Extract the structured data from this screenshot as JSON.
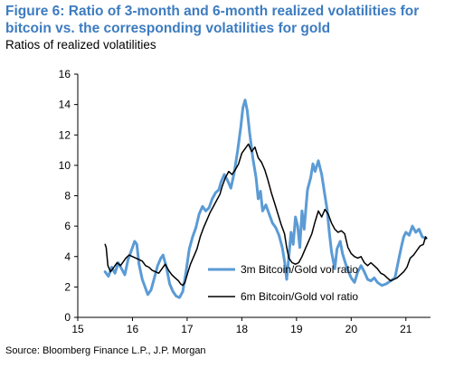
{
  "figure": {
    "title": "Figure 6: Ratio of 3-month and 6-month realized volatilities for bitcoin vs. the corresponding volatilities for gold",
    "subtitle": "Ratios of realized volatilities",
    "source": "Source: Bloomberg Finance L.P., J.P. Morgan"
  },
  "chart_data": {
    "type": "line",
    "title": "Figure 6: Ratio of 3-month and 6-month realized volatilities for bitcoin vs. the corresponding volatilities for gold",
    "subtitle": "Ratios of realized volatilities",
    "xlabel": "",
    "ylabel": "",
    "xlim": [
      15,
      21.45
    ],
    "ylim": [
      0,
      16
    ],
    "xticks": [
      "15",
      "16",
      "17",
      "18",
      "19",
      "20",
      "21"
    ],
    "yticks": [
      "0",
      "2",
      "4",
      "6",
      "8",
      "10",
      "12",
      "14",
      "16"
    ],
    "grid": false,
    "legend": "inside-lower-right",
    "series": [
      {
        "name": "3m Bitcoin/Gold vol ratio",
        "color": "#5b9bd5",
        "points": [
          [
            15.5,
            3.0
          ],
          [
            15.56,
            2.7
          ],
          [
            15.62,
            3.3
          ],
          [
            15.68,
            2.9
          ],
          [
            15.74,
            3.6
          ],
          [
            15.8,
            3.2
          ],
          [
            15.86,
            2.8
          ],
          [
            15.92,
            3.8
          ],
          [
            15.98,
            4.4
          ],
          [
            16.04,
            5.0
          ],
          [
            16.08,
            4.8
          ],
          [
            16.12,
            3.5
          ],
          [
            16.18,
            2.5
          ],
          [
            16.24,
            1.9
          ],
          [
            16.28,
            1.5
          ],
          [
            16.34,
            1.8
          ],
          [
            16.4,
            2.6
          ],
          [
            16.46,
            3.4
          ],
          [
            16.52,
            3.9
          ],
          [
            16.56,
            4.1
          ],
          [
            16.62,
            3.3
          ],
          [
            16.68,
            2.2
          ],
          [
            16.74,
            1.7
          ],
          [
            16.8,
            1.4
          ],
          [
            16.86,
            1.3
          ],
          [
            16.92,
            1.7
          ],
          [
            16.98,
            3.0
          ],
          [
            17.04,
            4.5
          ],
          [
            17.1,
            5.3
          ],
          [
            17.16,
            5.9
          ],
          [
            17.22,
            6.8
          ],
          [
            17.28,
            7.3
          ],
          [
            17.34,
            7.0
          ],
          [
            17.4,
            7.2
          ],
          [
            17.46,
            7.8
          ],
          [
            17.52,
            8.2
          ],
          [
            17.58,
            8.4
          ],
          [
            17.62,
            8.9
          ],
          [
            17.68,
            9.4
          ],
          [
            17.74,
            9.0
          ],
          [
            17.8,
            8.5
          ],
          [
            17.86,
            9.5
          ],
          [
            17.92,
            10.9
          ],
          [
            17.98,
            12.5
          ],
          [
            18.02,
            13.8
          ],
          [
            18.06,
            14.3
          ],
          [
            18.1,
            13.6
          ],
          [
            18.14,
            12.2
          ],
          [
            18.2,
            10.5
          ],
          [
            18.26,
            9.2
          ],
          [
            18.3,
            7.8
          ],
          [
            18.34,
            8.3
          ],
          [
            18.38,
            7.0
          ],
          [
            18.44,
            7.4
          ],
          [
            18.5,
            6.8
          ],
          [
            18.56,
            6.2
          ],
          [
            18.62,
            5.9
          ],
          [
            18.68,
            5.4
          ],
          [
            18.74,
            4.6
          ],
          [
            18.78,
            3.7
          ],
          [
            18.82,
            2.5
          ],
          [
            18.86,
            4.0
          ],
          [
            18.9,
            5.6
          ],
          [
            18.94,
            4.8
          ],
          [
            18.98,
            6.6
          ],
          [
            19.02,
            6.0
          ],
          [
            19.06,
            4.6
          ],
          [
            19.1,
            7.0
          ],
          [
            19.14,
            5.8
          ],
          [
            19.2,
            8.4
          ],
          [
            19.26,
            9.2
          ],
          [
            19.3,
            10.1
          ],
          [
            19.34,
            9.6
          ],
          [
            19.4,
            10.3
          ],
          [
            19.46,
            9.4
          ],
          [
            19.52,
            8.0
          ],
          [
            19.56,
            7.1
          ],
          [
            19.6,
            5.6
          ],
          [
            19.64,
            4.3
          ],
          [
            19.7,
            3.2
          ],
          [
            19.74,
            4.5
          ],
          [
            19.8,
            5.0
          ],
          [
            19.84,
            4.2
          ],
          [
            19.9,
            3.5
          ],
          [
            19.94,
            3.1
          ],
          [
            20.0,
            2.6
          ],
          [
            20.06,
            2.3
          ],
          [
            20.12,
            3.0
          ],
          [
            20.18,
            3.4
          ],
          [
            20.24,
            3.0
          ],
          [
            20.3,
            2.5
          ],
          [
            20.36,
            2.4
          ],
          [
            20.42,
            2.6
          ],
          [
            20.48,
            2.3
          ],
          [
            20.56,
            2.1
          ],
          [
            20.64,
            2.2
          ],
          [
            20.72,
            2.4
          ],
          [
            20.8,
            2.6
          ],
          [
            20.84,
            3.3
          ],
          [
            20.88,
            4.0
          ],
          [
            20.92,
            4.7
          ],
          [
            20.96,
            5.3
          ],
          [
            21.0,
            5.6
          ],
          [
            21.06,
            5.4
          ],
          [
            21.12,
            6.0
          ],
          [
            21.18,
            5.6
          ],
          [
            21.24,
            5.8
          ],
          [
            21.3,
            5.3
          ],
          [
            21.36,
            5.2
          ]
        ]
      },
      {
        "name": "6m Bitcoin/Gold vol ratio",
        "color": "#000000",
        "points": [
          [
            15.5,
            4.8
          ],
          [
            15.52,
            4.6
          ],
          [
            15.55,
            3.4
          ],
          [
            15.6,
            3.0
          ],
          [
            15.66,
            3.3
          ],
          [
            15.72,
            3.6
          ],
          [
            15.78,
            3.4
          ],
          [
            15.84,
            3.7
          ],
          [
            15.88,
            3.9
          ],
          [
            15.94,
            4.1
          ],
          [
            16.0,
            4.0
          ],
          [
            16.06,
            3.9
          ],
          [
            16.12,
            3.8
          ],
          [
            16.18,
            3.7
          ],
          [
            16.24,
            3.4
          ],
          [
            16.3,
            3.3
          ],
          [
            16.36,
            3.1
          ],
          [
            16.42,
            3.0
          ],
          [
            16.48,
            2.9
          ],
          [
            16.54,
            3.2
          ],
          [
            16.6,
            3.5
          ],
          [
            16.66,
            3.1
          ],
          [
            16.72,
            2.8
          ],
          [
            16.78,
            2.6
          ],
          [
            16.84,
            2.4
          ],
          [
            16.88,
            2.2
          ],
          [
            16.92,
            2.1
          ],
          [
            16.96,
            2.3
          ],
          [
            17.0,
            2.8
          ],
          [
            17.06,
            3.5
          ],
          [
            17.12,
            4.0
          ],
          [
            17.18,
            4.5
          ],
          [
            17.24,
            5.3
          ],
          [
            17.3,
            5.9
          ],
          [
            17.36,
            6.4
          ],
          [
            17.42,
            6.9
          ],
          [
            17.48,
            7.3
          ],
          [
            17.54,
            7.7
          ],
          [
            17.6,
            8.1
          ],
          [
            17.64,
            8.6
          ],
          [
            17.7,
            9.2
          ],
          [
            17.76,
            9.6
          ],
          [
            17.82,
            9.4
          ],
          [
            17.88,
            9.7
          ],
          [
            17.94,
            10.1
          ],
          [
            18.0,
            10.8
          ],
          [
            18.06,
            11.1
          ],
          [
            18.12,
            11.4
          ],
          [
            18.18,
            10.9
          ],
          [
            18.24,
            11.2
          ],
          [
            18.3,
            10.5
          ],
          [
            18.36,
            10.2
          ],
          [
            18.42,
            9.7
          ],
          [
            18.48,
            9.0
          ],
          [
            18.54,
            8.2
          ],
          [
            18.6,
            7.5
          ],
          [
            18.66,
            6.8
          ],
          [
            18.72,
            6.1
          ],
          [
            18.78,
            5.5
          ],
          [
            18.82,
            4.6
          ],
          [
            18.86,
            3.9
          ],
          [
            18.92,
            3.6
          ],
          [
            18.98,
            3.5
          ],
          [
            19.04,
            3.6
          ],
          [
            19.1,
            4.0
          ],
          [
            19.16,
            4.5
          ],
          [
            19.22,
            5.0
          ],
          [
            19.28,
            5.5
          ],
          [
            19.34,
            6.3
          ],
          [
            19.4,
            7.0
          ],
          [
            19.46,
            6.6
          ],
          [
            19.52,
            7.1
          ],
          [
            19.58,
            6.8
          ],
          [
            19.64,
            6.2
          ],
          [
            19.7,
            5.8
          ],
          [
            19.76,
            5.6
          ],
          [
            19.82,
            5.7
          ],
          [
            19.88,
            5.5
          ],
          [
            19.94,
            4.6
          ],
          [
            20.0,
            4.2
          ],
          [
            20.06,
            4.0
          ],
          [
            20.12,
            3.9
          ],
          [
            20.18,
            4.0
          ],
          [
            20.24,
            3.6
          ],
          [
            20.3,
            3.4
          ],
          [
            20.36,
            3.6
          ],
          [
            20.42,
            3.4
          ],
          [
            20.48,
            3.2
          ],
          [
            20.54,
            2.9
          ],
          [
            20.6,
            2.8
          ],
          [
            20.66,
            2.6
          ],
          [
            20.72,
            2.4
          ],
          [
            20.78,
            2.5
          ],
          [
            20.84,
            2.6
          ],
          [
            20.9,
            2.8
          ],
          [
            20.96,
            3.0
          ],
          [
            21.02,
            3.3
          ],
          [
            21.08,
            3.9
          ],
          [
            21.14,
            4.1
          ],
          [
            21.2,
            4.4
          ],
          [
            21.26,
            4.7
          ],
          [
            21.32,
            4.8
          ],
          [
            21.36,
            5.3
          ],
          [
            21.38,
            5.2
          ]
        ]
      }
    ]
  }
}
